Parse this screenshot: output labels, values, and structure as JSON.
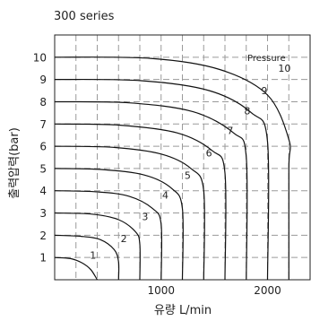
{
  "chart_data": {
    "type": "line",
    "title": "300 series",
    "xlabel": "유량 L/min",
    "ylabel": "출력압력(bar)",
    "annotation": "Pressure",
    "xlim": [
      0,
      2400
    ],
    "ylim": [
      0,
      11
    ],
    "x_ticks": [
      1000,
      2000
    ],
    "y_ticks": [
      1,
      2,
      3,
      4,
      5,
      6,
      7,
      8,
      9,
      10
    ],
    "grid": true,
    "series": [
      {
        "name": "1",
        "points": [
          [
            0,
            1
          ],
          [
            150,
            0.95
          ],
          [
            260,
            0.75
          ],
          [
            340,
            0.45
          ],
          [
            400,
            0
          ]
        ]
      },
      {
        "name": "2",
        "points": [
          [
            0,
            2
          ],
          [
            250,
            1.95
          ],
          [
            430,
            1.8
          ],
          [
            560,
            1.35
          ],
          [
            600,
            0.8
          ],
          [
            600,
            0
          ]
        ]
      },
      {
        "name": "3",
        "points": [
          [
            0,
            3
          ],
          [
            350,
            2.95
          ],
          [
            600,
            2.7
          ],
          [
            760,
            2.15
          ],
          [
            800,
            1.6
          ],
          [
            800,
            0
          ]
        ]
      },
      {
        "name": "4",
        "points": [
          [
            0,
            4
          ],
          [
            400,
            3.95
          ],
          [
            700,
            3.75
          ],
          [
            920,
            3.2
          ],
          [
            1000,
            2.5
          ],
          [
            1000,
            0
          ]
        ]
      },
      {
        "name": "5",
        "points": [
          [
            0,
            5
          ],
          [
            450,
            4.95
          ],
          [
            850,
            4.7
          ],
          [
            1100,
            4.1
          ],
          [
            1200,
            3.2
          ],
          [
            1200,
            0
          ]
        ]
      },
      {
        "name": "6",
        "points": [
          [
            0,
            6
          ],
          [
            550,
            5.95
          ],
          [
            1000,
            5.65
          ],
          [
            1280,
            5.0
          ],
          [
            1400,
            4.0
          ],
          [
            1400,
            0
          ]
        ]
      },
      {
        "name": "7",
        "points": [
          [
            0,
            7
          ],
          [
            600,
            6.95
          ],
          [
            1150,
            6.6
          ],
          [
            1480,
            5.8
          ],
          [
            1600,
            4.8
          ],
          [
            1600,
            0
          ]
        ]
      },
      {
        "name": "8",
        "points": [
          [
            0,
            8
          ],
          [
            700,
            7.95
          ],
          [
            1300,
            7.55
          ],
          [
            1680,
            6.6
          ],
          [
            1800,
            5.5
          ],
          [
            1800,
            0
          ]
        ]
      },
      {
        "name": "9",
        "points": [
          [
            0,
            9
          ],
          [
            800,
            8.95
          ],
          [
            1450,
            8.5
          ],
          [
            1850,
            7.5
          ],
          [
            2000,
            6.2
          ],
          [
            2000,
            0
          ]
        ]
      },
      {
        "name": "10",
        "points": [
          [
            0,
            10
          ],
          [
            900,
            9.95
          ],
          [
            1550,
            9.45
          ],
          [
            2000,
            8.3
          ],
          [
            2200,
            6.3
          ],
          [
            2200,
            5.0
          ],
          [
            2200,
            0
          ]
        ]
      }
    ],
    "series_label_points": [
      [
        330,
        1.1
      ],
      [
        620,
        1.85
      ],
      [
        820,
        2.85
      ],
      [
        1010,
        3.8
      ],
      [
        1220,
        4.7
      ],
      [
        1420,
        5.7
      ],
      [
        1620,
        6.7
      ],
      [
        1780,
        7.6
      ],
      [
        1940,
        8.5
      ],
      [
        2100,
        9.5
      ]
    ]
  }
}
